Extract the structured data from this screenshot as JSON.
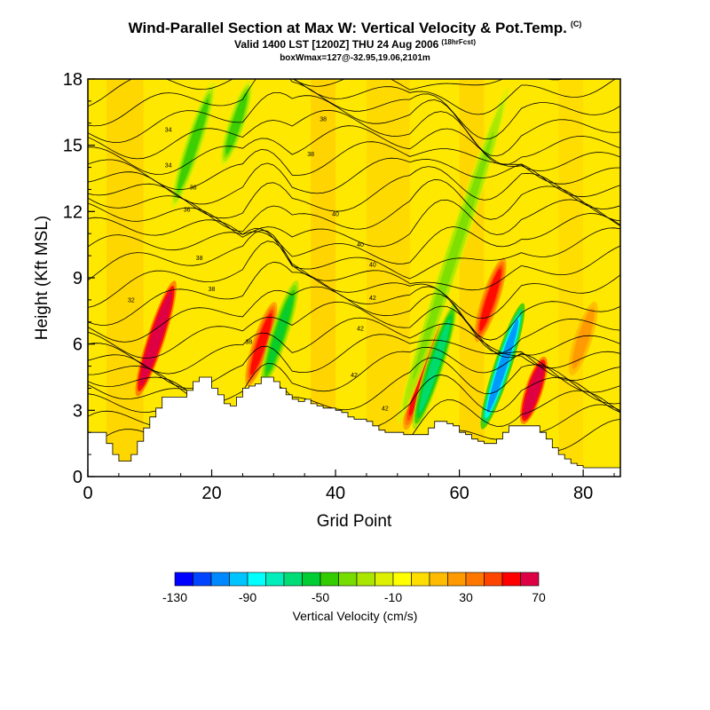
{
  "header": {
    "title": "Wind-Parallel Section at Max W: Vertical Velocity & Pot.Temp.",
    "title_tag": "(C)",
    "subtitle": "Valid 1400 LST [1200Z] THU 24 Aug 2006",
    "subtitle_tag": "(18hrFcst)",
    "subtitle2": "boxWmax=127@-32.95,19.06,2101m"
  },
  "chart_data": {
    "type": "heatmap",
    "xlabel": "Grid Point",
    "ylabel": "Height (Kft MSL)",
    "xlim": [
      0,
      86
    ],
    "ylim": [
      0,
      18
    ],
    "xticks": [
      0,
      20,
      40,
      60,
      80
    ],
    "yticks": [
      0,
      3,
      6,
      9,
      12,
      15,
      18
    ],
    "grid": false,
    "terrain_kft": [
      2,
      2,
      2,
      1.5,
      1,
      0.7,
      0.7,
      1,
      1.6,
      2.2,
      2.7,
      3.1,
      3.6,
      3.6,
      3.6,
      3.6,
      3.9,
      4.3,
      4.5,
      4.5,
      4,
      3.7,
      3.3,
      3.2,
      3.6,
      4,
      4.1,
      4.2,
      4.5,
      4.5,
      4.3,
      4,
      3.7,
      3.5,
      3.4,
      3.5,
      3.3,
      3.2,
      3.1,
      3.1,
      3,
      2.9,
      2.7,
      2.6,
      2.6,
      2.5,
      2.3,
      2.1,
      2,
      2,
      2,
      1.9,
      1.9,
      1.9,
      1.9,
      2.2,
      2.5,
      2.5,
      2.4,
      2.3,
      2,
      1.9,
      1.7,
      1.6,
      1.5,
      1.5,
      1.7,
      2,
      2.3,
      2.3,
      2.3,
      2.3,
      2.3,
      2,
      1.7,
      1.3,
      1,
      0.8,
      0.6,
      0.5,
      0.4,
      0.4,
      0.4,
      0.4,
      0.4,
      0.4,
      0.4
    ],
    "vertical_velocity_features_cm_s": [
      {
        "x": 11,
        "height_range_kft": [
          3.5,
          9
        ],
        "w": 110
      },
      {
        "x": 17,
        "height_range_kft": [
          12,
          18
        ],
        "w": -50
      },
      {
        "x": 24,
        "height_range_kft": [
          14,
          18
        ],
        "w": -50
      },
      {
        "x": 28,
        "height_range_kft": [
          4,
          8
        ],
        "w": 60
      },
      {
        "x": 31,
        "height_range_kft": [
          4,
          9
        ],
        "w": -60
      },
      {
        "x": 54,
        "height_range_kft": [
          2,
          7
        ],
        "w": 60
      },
      {
        "x": 56,
        "height_range_kft": [
          2,
          8
        ],
        "w": -80
      },
      {
        "x": 59,
        "height_range_kft": [
          2,
          18
        ],
        "w": -40
      },
      {
        "x": 67,
        "height_range_kft": [
          2,
          8
        ],
        "w": -120
      },
      {
        "x": 65,
        "height_range_kft": [
          6,
          10
        ],
        "w": 70
      },
      {
        "x": 72,
        "height_range_kft": [
          2.3,
          5.5
        ],
        "w": 100
      },
      {
        "x": 80,
        "height_range_kft": [
          4.5,
          8
        ],
        "w": 30
      }
    ],
    "contours": {
      "variable": "Potential Temperature (C)",
      "labels": [
        "32",
        "34",
        "34",
        "36",
        "36",
        "38",
        "38",
        "38",
        "38",
        "38",
        "40",
        "40",
        "40",
        "42",
        "42",
        "42",
        "42"
      ]
    },
    "colorbar": {
      "title": "Vertical Velocity (cm/s)",
      "tick_labels": [
        "-130",
        "-90",
        "-50",
        "-10",
        "30",
        "70"
      ],
      "colors": [
        "#0000ff",
        "#0044ff",
        "#0088ff",
        "#00c4ff",
        "#00ffff",
        "#00eebb",
        "#00dd77",
        "#00cc33",
        "#33cc00",
        "#77dd00",
        "#aae600",
        "#ddf000",
        "#ffff00",
        "#ffdd00",
        "#ffbb00",
        "#ff9900",
        "#ff7700",
        "#ff4400",
        "#ff0000",
        "#dd0044"
      ],
      "levels_start": -130,
      "levels_step": 10
    }
  }
}
